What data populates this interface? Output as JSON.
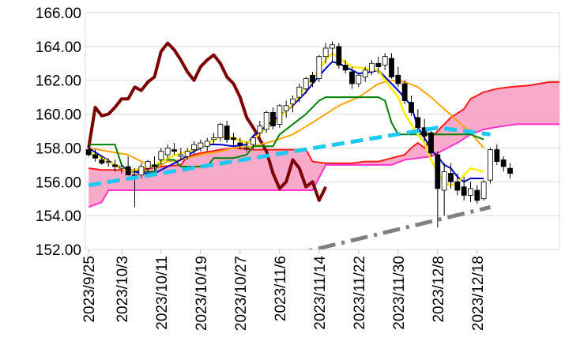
{
  "chart_data": {
    "type": "candlestick",
    "y_ticks": [
      "152.00",
      "154.00",
      "156.00",
      "158.00",
      "160.00",
      "162.00",
      "164.00",
      "166.00"
    ],
    "ylim": [
      152,
      166
    ],
    "x_tick_labels": [
      "2023/9/25",
      "2023/10/3",
      "2023/10/11",
      "2023/10/19",
      "2023/10/27",
      "2023/11/6",
      "2023/11/14",
      "2023/11/22",
      "2023/11/30",
      "2023/12/8",
      "2023/12/18"
    ],
    "x_tick_index": [
      0,
      5,
      11,
      17,
      23,
      29,
      35,
      41,
      47,
      53,
      59
    ],
    "n_slots": 72,
    "grid": "horizontal",
    "candles": [
      [
        157.9,
        158.2,
        157.5,
        157.6
      ],
      [
        157.6,
        157.9,
        157.2,
        157.4
      ],
      [
        157.3,
        157.5,
        157.0,
        157.1
      ],
      [
        157.2,
        157.4,
        156.9,
        157.2
      ],
      [
        157.0,
        157.3,
        156.6,
        156.9
      ],
      [
        156.8,
        157.1,
        156.5,
        156.9
      ],
      [
        156.9,
        157.5,
        156.4,
        156.4
      ],
      [
        156.4,
        156.8,
        154.5,
        156.3
      ],
      [
        156.4,
        157.1,
        156.2,
        156.9
      ],
      [
        156.8,
        157.3,
        156.6,
        157.2
      ],
      [
        157.0,
        157.5,
        156.7,
        156.9
      ],
      [
        157.3,
        158.0,
        157.0,
        157.8
      ],
      [
        157.6,
        158.2,
        157.4,
        158.0
      ],
      [
        157.9,
        158.3,
        157.6,
        157.8
      ],
      [
        157.5,
        158.0,
        157.3,
        157.6
      ],
      [
        157.5,
        158.0,
        157.3,
        157.8
      ],
      [
        157.9,
        158.4,
        157.6,
        158.2
      ],
      [
        158.0,
        158.5,
        157.8,
        158.3
      ],
      [
        158.1,
        158.6,
        157.8,
        158.4
      ],
      [
        158.5,
        158.9,
        158.2,
        158.6
      ],
      [
        158.6,
        159.5,
        158.4,
        159.4
      ],
      [
        159.3,
        159.6,
        158.3,
        158.5
      ],
      [
        158.6,
        158.9,
        158.1,
        158.5
      ],
      [
        158.3,
        158.6,
        157.9,
        158.2
      ],
      [
        158.0,
        158.4,
        157.8,
        158.0
      ],
      [
        158.2,
        158.8,
        157.9,
        158.6
      ],
      [
        158.9,
        159.6,
        158.7,
        159.3
      ],
      [
        159.1,
        160.2,
        158.9,
        160.1
      ],
      [
        160.1,
        160.4,
        159.1,
        159.3
      ],
      [
        159.4,
        160.6,
        159.2,
        160.5
      ],
      [
        160.2,
        160.8,
        159.8,
        160.5
      ],
      [
        160.6,
        161.1,
        160.1,
        160.9
      ],
      [
        161.0,
        161.8,
        160.7,
        161.6
      ],
      [
        161.5,
        162.2,
        161.2,
        162.1
      ],
      [
        162.3,
        162.5,
        161.6,
        161.9
      ],
      [
        162.1,
        163.5,
        161.9,
        163.4
      ],
      [
        163.4,
        164.2,
        163.0,
        163.9
      ],
      [
        163.9,
        164.3,
        163.1,
        164.1
      ],
      [
        164.0,
        164.2,
        162.7,
        162.9
      ],
      [
        162.9,
        163.2,
        162.4,
        162.6
      ],
      [
        162.5,
        162.8,
        161.5,
        161.8
      ],
      [
        161.8,
        162.4,
        161.6,
        162.3
      ],
      [
        162.2,
        162.8,
        161.9,
        162.6
      ],
      [
        162.5,
        163.2,
        162.3,
        163.0
      ],
      [
        163.0,
        163.4,
        162.4,
        162.8
      ],
      [
        162.9,
        163.6,
        162.6,
        163.4
      ],
      [
        163.3,
        163.6,
        162.1,
        162.2
      ],
      [
        162.3,
        162.8,
        161.6,
        161.8
      ],
      [
        161.8,
        162.0,
        160.6,
        160.8
      ],
      [
        160.7,
        161.1,
        159.9,
        160.1
      ],
      [
        159.8,
        160.3,
        158.9,
        159.2
      ],
      [
        159.2,
        159.7,
        158.4,
        158.7
      ],
      [
        158.9,
        159.0,
        157.5,
        157.7
      ],
      [
        157.6,
        157.8,
        153.3,
        155.6
      ],
      [
        155.5,
        157.1,
        154.0,
        156.6
      ],
      [
        156.5,
        157.1,
        155.6,
        156.0
      ],
      [
        156.0,
        156.5,
        155.2,
        155.5
      ],
      [
        155.7,
        156.3,
        154.9,
        155.2
      ],
      [
        155.2,
        156.0,
        154.8,
        155.6
      ],
      [
        155.5,
        155.8,
        154.7,
        154.9
      ],
      [
        155.0,
        156.1,
        154.9,
        156.0
      ],
      [
        156.1,
        158.0,
        155.9,
        157.9
      ],
      [
        157.9,
        158.2,
        157.0,
        157.2
      ],
      [
        157.3,
        157.5,
        156.6,
        156.9
      ],
      [
        156.8,
        157.1,
        156.2,
        156.5
      ]
    ],
    "cloud_span_a": [
      [
        0,
        156.8
      ],
      [
        2,
        156.7
      ],
      [
        4,
        156.7
      ],
      [
        8,
        156.7
      ],
      [
        11,
        156.9
      ],
      [
        14,
        157.0
      ],
      [
        15,
        157.5
      ],
      [
        17,
        157.7
      ],
      [
        20,
        157.9
      ],
      [
        22,
        158.0
      ],
      [
        25,
        157.9
      ],
      [
        28,
        157.9
      ],
      [
        30,
        157.9
      ],
      [
        33,
        157.9
      ],
      [
        34,
        157.2
      ],
      [
        36,
        157.1
      ],
      [
        40,
        157.1
      ],
      [
        42,
        157.2
      ],
      [
        44,
        157.2
      ],
      [
        46,
        157.4
      ],
      [
        48,
        157.6
      ],
      [
        49,
        158.0
      ],
      [
        50,
        158.3
      ],
      [
        51,
        158.0
      ],
      [
        52,
        158.6
      ],
      [
        53,
        159.0
      ],
      [
        55,
        159.8
      ],
      [
        57,
        160.3
      ],
      [
        58,
        160.9
      ],
      [
        60,
        161.3
      ],
      [
        62,
        161.5
      ],
      [
        64,
        161.6
      ],
      [
        67,
        161.7
      ],
      [
        70,
        161.9
      ],
      [
        72,
        161.9
      ]
    ],
    "cloud_span_b": [
      [
        0,
        154.5
      ],
      [
        2,
        154.8
      ],
      [
        3,
        155.5
      ],
      [
        5,
        155.5
      ],
      [
        10,
        155.5
      ],
      [
        20,
        155.5
      ],
      [
        27,
        155.5
      ],
      [
        34,
        155.5
      ],
      [
        36,
        157.0
      ],
      [
        38,
        157.0
      ],
      [
        41,
        157.0
      ],
      [
        46,
        157.0
      ],
      [
        48,
        157.3
      ],
      [
        52,
        157.5
      ],
      [
        56,
        158.3
      ],
      [
        58,
        158.8
      ],
      [
        60,
        159.1
      ],
      [
        63,
        159.3
      ],
      [
        65,
        159.4
      ],
      [
        72,
        159.4
      ]
    ],
    "series": [
      {
        "color": "#7f0000",
        "points": [
          [
            0,
            158.0
          ],
          [
            1,
            160.4
          ],
          [
            2,
            159.9
          ],
          [
            3,
            160.0
          ],
          [
            4,
            160.4
          ],
          [
            5,
            160.9
          ],
          [
            6,
            160.9
          ],
          [
            7,
            161.6
          ],
          [
            8,
            161.4
          ],
          [
            9,
            161.9
          ],
          [
            10,
            162.2
          ],
          [
            11,
            163.7
          ],
          [
            12,
            164.2
          ],
          [
            13,
            163.8
          ],
          [
            14,
            163.2
          ],
          [
            15,
            162.5
          ],
          [
            16,
            162.0
          ],
          [
            17,
            162.8
          ],
          [
            18,
            163.2
          ],
          [
            19,
            163.5
          ],
          [
            20,
            163.0
          ],
          [
            21,
            162.2
          ],
          [
            22,
            161.8
          ],
          [
            23,
            161.0
          ],
          [
            24,
            159.8
          ],
          [
            25,
            159.2
          ],
          [
            26,
            158.5
          ],
          [
            27,
            157.8
          ],
          [
            28,
            156.5
          ],
          [
            29,
            155.6
          ],
          [
            30,
            156.0
          ],
          [
            31,
            157.3
          ],
          [
            32,
            156.8
          ],
          [
            33,
            155.7
          ],
          [
            34,
            156.0
          ],
          [
            35,
            154.9
          ],
          [
            36,
            155.7
          ]
        ]
      },
      {
        "color": "#ffa500",
        "points": [
          [
            0,
            158.0
          ],
          [
            3,
            157.8
          ],
          [
            6,
            157.6
          ],
          [
            8,
            157.2
          ],
          [
            10,
            156.8
          ],
          [
            12,
            157.2
          ],
          [
            14,
            157.3
          ],
          [
            17,
            157.6
          ],
          [
            20,
            157.8
          ],
          [
            22,
            158.0
          ],
          [
            25,
            158.1
          ],
          [
            28,
            158.4
          ],
          [
            31,
            158.8
          ],
          [
            34,
            159.5
          ],
          [
            36,
            160.0
          ],
          [
            38,
            160.5
          ],
          [
            41,
            161.0
          ],
          [
            44,
            161.8
          ],
          [
            46,
            162.0
          ],
          [
            48,
            161.9
          ],
          [
            50,
            161.6
          ],
          [
            52,
            161.0
          ],
          [
            54,
            160.3
          ],
          [
            56,
            159.6
          ],
          [
            58,
            158.9
          ],
          [
            60,
            158.0
          ]
        ]
      },
      {
        "color": "#008000",
        "points": [
          [
            0,
            158.2
          ],
          [
            4,
            158.2
          ],
          [
            5,
            157.0
          ],
          [
            6,
            156.6
          ],
          [
            10,
            156.6
          ],
          [
            11,
            157.3
          ],
          [
            13,
            157.3
          ],
          [
            14,
            156.9
          ],
          [
            18,
            156.9
          ],
          [
            19,
            157.4
          ],
          [
            22,
            157.4
          ],
          [
            24,
            157.6
          ],
          [
            25,
            158.1
          ],
          [
            28,
            158.1
          ],
          [
            29,
            158.8
          ],
          [
            31,
            159.4
          ],
          [
            33,
            160.0
          ],
          [
            35,
            160.8
          ],
          [
            36,
            161.0
          ],
          [
            40,
            161.0
          ],
          [
            44,
            161.0
          ],
          [
            45,
            160.8
          ],
          [
            46,
            159.5
          ],
          [
            47,
            158.8
          ],
          [
            52,
            158.8
          ],
          [
            58,
            158.8
          ],
          [
            60,
            158.5
          ]
        ]
      },
      {
        "color": "#0000cc",
        "points": [
          [
            0,
            158.0
          ],
          [
            2,
            157.5
          ],
          [
            4,
            157.0
          ],
          [
            6,
            156.7
          ],
          [
            8,
            156.5
          ],
          [
            10,
            156.5
          ],
          [
            12,
            156.9
          ],
          [
            14,
            157.3
          ],
          [
            16,
            157.8
          ],
          [
            18,
            158.2
          ],
          [
            20,
            158.2
          ],
          [
            22,
            158.1
          ],
          [
            24,
            158.2
          ],
          [
            25,
            158.7
          ],
          [
            27,
            159.3
          ],
          [
            29,
            159.9
          ],
          [
            31,
            160.5
          ],
          [
            33,
            161.3
          ],
          [
            34,
            161.8
          ],
          [
            36,
            162.7
          ],
          [
            37,
            163.1
          ],
          [
            38,
            163.0
          ],
          [
            40,
            162.6
          ],
          [
            41,
            162.4
          ],
          [
            43,
            162.5
          ],
          [
            44,
            162.6
          ],
          [
            45,
            162.2
          ],
          [
            47,
            161.4
          ],
          [
            49,
            160.5
          ],
          [
            50,
            159.2
          ],
          [
            51,
            158.6
          ],
          [
            52,
            157.9
          ],
          [
            53,
            157.5
          ],
          [
            54,
            157.0
          ],
          [
            55,
            156.8
          ],
          [
            56,
            156.3
          ],
          [
            57,
            156.0
          ],
          [
            58,
            156.2
          ],
          [
            60,
            156.2
          ]
        ]
      },
      {
        "color": "#ffeb00",
        "points": [
          [
            0,
            157.8
          ],
          [
            2,
            157.4
          ],
          [
            4,
            157.0
          ],
          [
            6,
            156.6
          ],
          [
            8,
            156.8
          ],
          [
            10,
            157.0
          ],
          [
            12,
            157.4
          ],
          [
            14,
            157.7
          ],
          [
            16,
            157.9
          ],
          [
            18,
            158.2
          ],
          [
            20,
            158.7
          ],
          [
            22,
            158.6
          ],
          [
            24,
            158.3
          ],
          [
            25,
            158.5
          ],
          [
            27,
            159.2
          ],
          [
            29,
            159.8
          ],
          [
            31,
            160.6
          ],
          [
            33,
            161.6
          ],
          [
            35,
            162.6
          ],
          [
            36,
            163.2
          ],
          [
            37,
            163.6
          ],
          [
            38,
            163.3
          ],
          [
            40,
            162.8
          ],
          [
            42,
            162.7
          ],
          [
            44,
            162.6
          ],
          [
            45,
            162.0
          ],
          [
            47,
            161.0
          ],
          [
            48,
            160.0
          ],
          [
            50,
            158.8
          ],
          [
            51,
            158.3
          ],
          [
            52,
            157.3
          ],
          [
            53,
            156.6
          ],
          [
            54,
            155.9
          ],
          [
            55,
            155.8
          ],
          [
            56,
            155.9
          ],
          [
            57,
            156.4
          ],
          [
            58,
            156.8
          ],
          [
            60,
            156.6
          ]
        ]
      }
    ],
    "dashed_trend": {
      "color": "#1ec8f0",
      "points": [
        [
          0,
          155.8
        ],
        [
          53,
          159.2
        ],
        [
          61,
          158.8
        ]
      ]
    },
    "dashdot_trend": {
      "color": "#808080",
      "points": [
        [
          30,
          151.6
        ],
        [
          61,
          154.5
        ]
      ]
    }
  }
}
